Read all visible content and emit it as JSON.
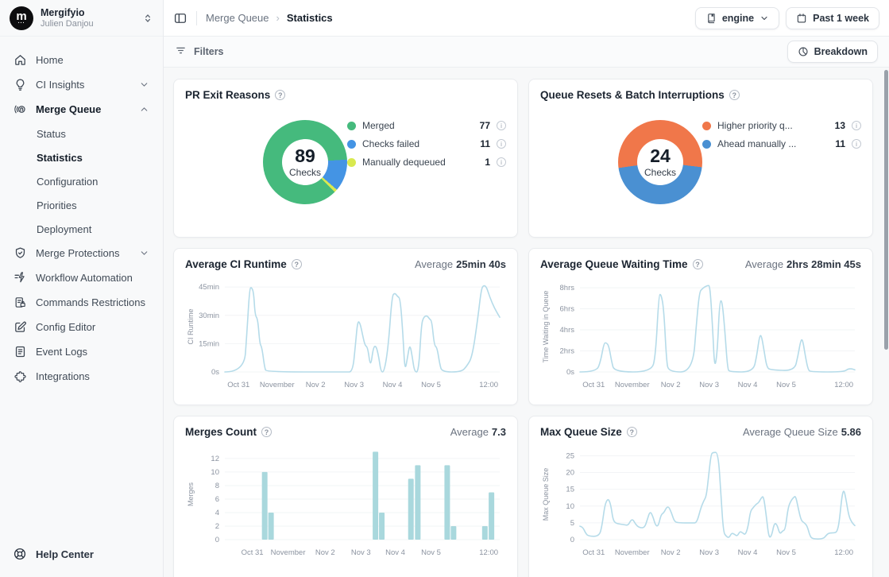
{
  "brand": {
    "org": "Mergifyio",
    "user": "Julien Danjou",
    "logo_letter": "m",
    "logo_dots": "..."
  },
  "topbar": {
    "breadcrumb_parent": "Merge Queue",
    "breadcrumb_current": "Statistics",
    "breadcrumb_sep": "›",
    "repo_selector": "engine",
    "time_range": "Past 1 week"
  },
  "toolbar": {
    "filters_label": "Filters",
    "breakdown_label": "Breakdown"
  },
  "sidebar": {
    "items": [
      {
        "label": "Home"
      },
      {
        "label": "CI Insights"
      },
      {
        "label": "Merge Queue"
      },
      {
        "label": "Merge Protections"
      },
      {
        "label": "Workflow Automation"
      },
      {
        "label": "Commands Restrictions"
      },
      {
        "label": "Config Editor"
      },
      {
        "label": "Event Logs"
      },
      {
        "label": "Integrations"
      }
    ],
    "merge_queue_children": [
      {
        "label": "Status"
      },
      {
        "label": "Statistics"
      },
      {
        "label": "Configuration"
      },
      {
        "label": "Priorities"
      },
      {
        "label": "Deployment"
      }
    ],
    "help_label": "Help Center"
  },
  "colors": {
    "green": "#45ba7d",
    "blue": "#4494e4",
    "lime": "#d9e94f",
    "orange": "#f0774a",
    "steel_blue": "#4a90d2",
    "line": "#b5dbe9",
    "bar": "#a9d8dd",
    "grid": "#f2f4f6"
  },
  "chart_data": [
    {
      "type": "pie",
      "title": "PR Exit Reasons",
      "center_value": "89",
      "center_label": "Checks",
      "start_angle": 135,
      "series": [
        {
          "name": "Merged",
          "value": 77,
          "color": "#45ba7d"
        },
        {
          "name": "Checks failed",
          "value": 11,
          "color": "#4494e4"
        },
        {
          "name": "Manually dequeued",
          "value": 1,
          "color": "#d9e94f"
        }
      ]
    },
    {
      "type": "pie",
      "title": "Queue Resets & Batch Interruptions",
      "center_value": "24",
      "center_label": "Checks",
      "start_angle": 262,
      "series": [
        {
          "name": "Higher priority q...",
          "value": 13,
          "color": "#f0774a"
        },
        {
          "name": "Ahead manually ...",
          "value": 11,
          "color": "#4a90d2"
        }
      ]
    },
    {
      "type": "line",
      "title": "Average CI Runtime",
      "ylabel": "CI Runtime",
      "average_label": "Average",
      "average_value": "25min 40s",
      "color": "#b5dbe9",
      "ymax": 48,
      "yticks": [
        {
          "v": 0,
          "label": "0s"
        },
        {
          "v": 15,
          "label": "15min"
        },
        {
          "v": 30,
          "label": "30min"
        },
        {
          "v": 45,
          "label": "45min"
        }
      ],
      "xticks": [
        {
          "x": 5,
          "label": "Oct 31"
        },
        {
          "x": 19,
          "label": "November"
        },
        {
          "x": 33,
          "label": "Nov 2"
        },
        {
          "x": 47,
          "label": "Nov 3"
        },
        {
          "x": 61,
          "label": "Nov 4"
        },
        {
          "x": 75,
          "label": "Nov 5"
        },
        {
          "x": 96,
          "label": "12:00"
        }
      ],
      "points": [
        [
          0,
          0
        ],
        [
          7,
          0
        ],
        [
          8,
          20
        ],
        [
          9,
          44
        ],
        [
          9.7,
          45
        ],
        [
          10.5,
          42
        ],
        [
          11,
          30
        ],
        [
          12,
          28
        ],
        [
          12.7,
          15
        ],
        [
          13.5,
          13
        ],
        [
          14.5,
          2
        ],
        [
          15.2,
          0
        ],
        [
          44,
          0
        ],
        [
          46.5,
          0
        ],
        [
          47.5,
          14
        ],
        [
          48.3,
          27
        ],
        [
          49.2,
          26
        ],
        [
          50.2,
          19
        ],
        [
          51,
          14
        ],
        [
          52,
          13
        ],
        [
          53,
          2
        ],
        [
          54,
          13
        ],
        [
          55,
          14
        ],
        [
          56,
          8
        ],
        [
          56.8,
          0
        ],
        [
          58,
          0
        ],
        [
          59.5,
          14
        ],
        [
          60.8,
          40
        ],
        [
          61.8,
          42
        ],
        [
          62.8,
          40
        ],
        [
          63.8,
          39
        ],
        [
          64.8,
          20
        ],
        [
          65.5,
          0
        ],
        [
          66.5,
          8
        ],
        [
          67.3,
          15
        ],
        [
          68.2,
          8
        ],
        [
          69,
          0
        ],
        [
          70.5,
          0
        ],
        [
          71.5,
          25
        ],
        [
          72.3,
          29
        ],
        [
          73.5,
          30
        ],
        [
          74.5,
          28
        ],
        [
          75.3,
          27
        ],
        [
          76.2,
          14
        ],
        [
          77.2,
          13
        ],
        [
          78.2,
          4
        ],
        [
          79,
          0
        ],
        [
          86,
          0
        ],
        [
          88,
          3
        ],
        [
          90,
          8
        ],
        [
          92,
          28
        ],
        [
          93.3,
          44
        ],
        [
          94.2,
          46
        ],
        [
          95.2,
          45
        ],
        [
          96.3,
          40
        ],
        [
          98,
          34
        ],
        [
          100,
          29
        ]
      ]
    },
    {
      "type": "line",
      "title": "Average Queue Waiting Time",
      "ylabel": "Time Waiting in Queue",
      "average_label": "Average",
      "average_value": "2hrs 28min 45s",
      "color": "#b5dbe9",
      "ymax": 8.6,
      "yticks": [
        {
          "v": 0,
          "label": "0s"
        },
        {
          "v": 2,
          "label": "2hrs"
        },
        {
          "v": 4,
          "label": "4hrs"
        },
        {
          "v": 6,
          "label": "6hrs"
        },
        {
          "v": 8,
          "label": "8hrs"
        }
      ],
      "xticks": [
        {
          "x": 5,
          "label": "Oct 31"
        },
        {
          "x": 19,
          "label": "November"
        },
        {
          "x": 33,
          "label": "Nov 2"
        },
        {
          "x": 47,
          "label": "Nov 3"
        },
        {
          "x": 61,
          "label": "Nov 4"
        },
        {
          "x": 75,
          "label": "Nov 5"
        },
        {
          "x": 96,
          "label": "12:00"
        }
      ],
      "points": [
        [
          0,
          0
        ],
        [
          6,
          0
        ],
        [
          7.5,
          1
        ],
        [
          8.7,
          2.7
        ],
        [
          9.5,
          2.8
        ],
        [
          10.5,
          2.5
        ],
        [
          11.5,
          1
        ],
        [
          12.5,
          0
        ],
        [
          26,
          0
        ],
        [
          27.5,
          1.5
        ],
        [
          28.7,
          7.3
        ],
        [
          29.5,
          7.4
        ],
        [
          30.5,
          6
        ],
        [
          31.5,
          1
        ],
        [
          32.3,
          0
        ],
        [
          41,
          0
        ],
        [
          42.5,
          5
        ],
        [
          43.5,
          7.6
        ],
        [
          44.5,
          7.9
        ],
        [
          45.5,
          8.1
        ],
        [
          46.5,
          8.2
        ],
        [
          47.3,
          8.2
        ],
        [
          48.3,
          4
        ],
        [
          49,
          0.2
        ],
        [
          50,
          2
        ],
        [
          50.8,
          6.7
        ],
        [
          51.7,
          6.8
        ],
        [
          52.7,
          4
        ],
        [
          53.7,
          0.3
        ],
        [
          54.5,
          0
        ],
        [
          63,
          0
        ],
        [
          64.3,
          1.5
        ],
        [
          65.3,
          3.4
        ],
        [
          66,
          3.5
        ],
        [
          67,
          2
        ],
        [
          68,
          0.4
        ],
        [
          69.5,
          0.2
        ],
        [
          78,
          0.1
        ],
        [
          79.3,
          1.5
        ],
        [
          80.3,
          3
        ],
        [
          81,
          3.1
        ],
        [
          82,
          1.5
        ],
        [
          83,
          0.2
        ],
        [
          84,
          0
        ],
        [
          96,
          0
        ],
        [
          97.5,
          0.3
        ],
        [
          99,
          0.3
        ],
        [
          100,
          0.2
        ]
      ]
    },
    {
      "type": "bar",
      "title": "Merges Count",
      "ylabel": "Merges",
      "average_label": "Average",
      "average_value": "7.3",
      "color": "#a9d8dd",
      "ymax": 13.4,
      "yticks": [
        {
          "v": 0,
          "label": "0"
        },
        {
          "v": 2,
          "label": "2"
        },
        {
          "v": 4,
          "label": "4"
        },
        {
          "v": 6,
          "label": "6"
        },
        {
          "v": 8,
          "label": "8"
        },
        {
          "v": 10,
          "label": "10"
        },
        {
          "v": 12,
          "label": "12"
        }
      ],
      "xticks": [
        {
          "x": 10,
          "label": "Oct 31"
        },
        {
          "x": 23,
          "label": "November"
        },
        {
          "x": 36.5,
          "label": "Nov 2"
        },
        {
          "x": 49.5,
          "label": "Nov 3"
        },
        {
          "x": 62,
          "label": "Nov 4"
        },
        {
          "x": 75,
          "label": "Nov 5"
        },
        {
          "x": 96,
          "label": "12:00"
        }
      ],
      "bars": [
        [
          14.5,
          10
        ],
        [
          16.8,
          4
        ],
        [
          54.8,
          13
        ],
        [
          57.1,
          4
        ],
        [
          67.7,
          9
        ],
        [
          70.2,
          11
        ],
        [
          80.9,
          11
        ],
        [
          83.2,
          2
        ],
        [
          94.6,
          2
        ],
        [
          97,
          7
        ]
      ]
    },
    {
      "type": "line",
      "title": "Max Queue Size",
      "ylabel": "Max Queue Size",
      "average_label": "Average Queue Size",
      "average_value": "5.86",
      "color": "#b5dbe9",
      "ymax": 27,
      "yticks": [
        {
          "v": 0,
          "label": "0"
        },
        {
          "v": 5,
          "label": "5"
        },
        {
          "v": 10,
          "label": "10"
        },
        {
          "v": 15,
          "label": "15"
        },
        {
          "v": 20,
          "label": "20"
        },
        {
          "v": 25,
          "label": "25"
        }
      ],
      "xticks": [
        {
          "x": 5,
          "label": "Oct 31"
        },
        {
          "x": 19,
          "label": "November"
        },
        {
          "x": 33,
          "label": "Nov 2"
        },
        {
          "x": 47,
          "label": "Nov 3"
        },
        {
          "x": 61,
          "label": "Nov 4"
        },
        {
          "x": 75,
          "label": "Nov 5"
        },
        {
          "x": 96,
          "label": "12:00"
        }
      ],
      "points": [
        [
          0,
          4
        ],
        [
          1,
          3.8
        ],
        [
          2,
          2
        ],
        [
          3,
          1
        ],
        [
          7,
          1
        ],
        [
          8,
          4
        ],
        [
          9,
          10
        ],
        [
          9.8,
          11.8
        ],
        [
          10.5,
          12
        ],
        [
          11.3,
          10
        ],
        [
          12,
          6
        ],
        [
          13,
          4.8
        ],
        [
          16,
          4.5
        ],
        [
          17.5,
          4.2
        ],
        [
          18.5,
          5.8
        ],
        [
          19.3,
          6
        ],
        [
          20.3,
          4.5
        ],
        [
          21.5,
          3.6
        ],
        [
          23.5,
          3.5
        ],
        [
          24.5,
          6
        ],
        [
          25.5,
          8.5
        ],
        [
          26.5,
          7
        ],
        [
          27.5,
          4.2
        ],
        [
          28.5,
          4
        ],
        [
          29.5,
          7.5
        ],
        [
          30.5,
          8
        ],
        [
          31.5,
          9.6
        ],
        [
          32.3,
          9.8
        ],
        [
          33.3,
          8
        ],
        [
          34.3,
          5.5
        ],
        [
          35.5,
          5
        ],
        [
          41,
          5
        ],
        [
          42.5,
          5
        ],
        [
          44,
          9.5
        ],
        [
          45,
          11.5
        ],
        [
          46,
          13
        ],
        [
          46.8,
          19
        ],
        [
          47.7,
          25.5
        ],
        [
          48.5,
          26
        ],
        [
          50.3,
          26
        ],
        [
          51.3,
          13
        ],
        [
          52.2,
          2.2
        ],
        [
          53.2,
          1
        ],
        [
          54.2,
          0.5
        ],
        [
          55.2,
          2
        ],
        [
          56.2,
          1.6
        ],
        [
          57.2,
          1
        ],
        [
          58.2,
          2.5
        ],
        [
          59.2,
          2
        ],
        [
          60.2,
          1.4
        ],
        [
          61.2,
          4
        ],
        [
          62,
          8.5
        ],
        [
          63,
          9.5
        ],
        [
          64,
          10.5
        ],
        [
          65,
          11
        ],
        [
          66,
          12.5
        ],
        [
          66.8,
          13
        ],
        [
          67.8,
          7
        ],
        [
          68.7,
          0.6
        ],
        [
          69.7,
          1
        ],
        [
          70.7,
          5
        ],
        [
          71.7,
          4.5
        ],
        [
          72.7,
          1.6
        ],
        [
          73.7,
          2.6
        ],
        [
          74.7,
          3
        ],
        [
          75.7,
          9.5
        ],
        [
          76.7,
          11.5
        ],
        [
          77.7,
          12.6
        ],
        [
          78.5,
          13
        ],
        [
          79.5,
          9
        ],
        [
          80.5,
          5.6
        ],
        [
          81.7,
          5
        ],
        [
          82.7,
          4
        ],
        [
          83.7,
          1
        ],
        [
          84.7,
          0.2
        ],
        [
          88.5,
          0.2
        ],
        [
          89.5,
          1.2
        ],
        [
          90.5,
          2
        ],
        [
          92.5,
          2
        ],
        [
          93.5,
          2.3
        ],
        [
          94.3,
          5
        ],
        [
          95.3,
          13
        ],
        [
          96,
          15
        ],
        [
          96.8,
          12
        ],
        [
          97.8,
          7
        ],
        [
          99,
          5
        ],
        [
          100,
          4.2
        ]
      ]
    }
  ]
}
